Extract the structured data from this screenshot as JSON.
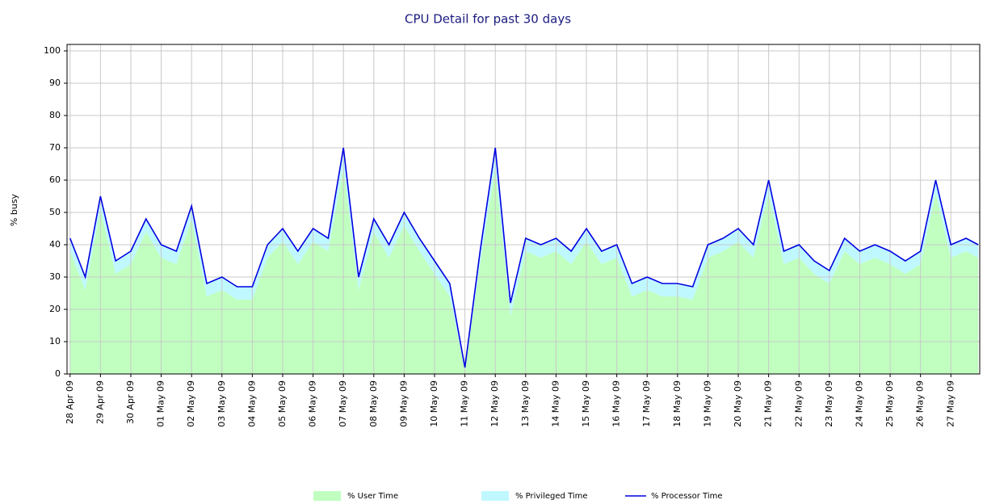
{
  "chart_data": {
    "type": "area",
    "title": "CPU Detail for past 30 days",
    "y_label": "% busy",
    "x": [
      0,
      0.5,
      1,
      1.5,
      2,
      2.5,
      3,
      3.5,
      4,
      4.5,
      5,
      5.5,
      6,
      6.5,
      7,
      7.5,
      8,
      8.5,
      9,
      9.5,
      10,
      10.5,
      11,
      11.5,
      12,
      12.5,
      13,
      13.5,
      14,
      14.5,
      15,
      15.5,
      16,
      16.5,
      17,
      17.5,
      18,
      18.5,
      19,
      19.5,
      20,
      20.5,
      21,
      21.5,
      22,
      22.5,
      23,
      23.5,
      24,
      24.5,
      25,
      25.5,
      26,
      26.5,
      27,
      27.5,
      28,
      28.5,
      29,
      29.5,
      29.9
    ],
    "series": [
      {
        "name": "% User Time",
        "color": "#c0ffc0",
        "stacked": true,
        "values": [
          38,
          26,
          51,
          31,
          34,
          44,
          36,
          34,
          48,
          24,
          26,
          23,
          23,
          36,
          41,
          34,
          41,
          38,
          64,
          26,
          44,
          36,
          46,
          38,
          31,
          24,
          1,
          34,
          64,
          18,
          38,
          36,
          38,
          34,
          41,
          34,
          36,
          24,
          26,
          24,
          24,
          23,
          36,
          38,
          41,
          36,
          56,
          34,
          36,
          31,
          28,
          38,
          34,
          36,
          34,
          31,
          34,
          56,
          36,
          38,
          36
        ]
      },
      {
        "name": "% Privileged Time",
        "color": "#c0f8ff",
        "stacked": true,
        "values": [
          4,
          4,
          4,
          4,
          4,
          4,
          4,
          4,
          4,
          4,
          4,
          4,
          4,
          4,
          4,
          4,
          4,
          4,
          6,
          4,
          4,
          4,
          4,
          4,
          4,
          4,
          1,
          4,
          6,
          4,
          4,
          4,
          4,
          4,
          4,
          4,
          4,
          4,
          4,
          4,
          4,
          4,
          4,
          4,
          4,
          4,
          4,
          4,
          4,
          4,
          4,
          4,
          4,
          4,
          4,
          4,
          4,
          4,
          4,
          4,
          4
        ]
      },
      {
        "name": "% Processor Time",
        "color": "#0000e0",
        "line": true,
        "values": [
          42,
          30,
          55,
          35,
          38,
          48,
          40,
          38,
          52,
          28,
          30,
          27,
          27,
          40,
          45,
          38,
          45,
          42,
          70,
          30,
          48,
          40,
          50,
          42,
          35,
          28,
          2,
          38,
          70,
          22,
          42,
          40,
          42,
          38,
          45,
          38,
          40,
          28,
          30,
          28,
          28,
          27,
          40,
          42,
          45,
          40,
          60,
          38,
          40,
          35,
          32,
          42,
          38,
          40,
          38,
          35,
          38,
          60,
          40,
          42,
          40
        ]
      }
    ],
    "xlim": [
      -0.1,
      29.95
    ],
    "xticks": [
      {
        "value": 0,
        "label": "28 Apr 09"
      },
      {
        "value": 1,
        "label": "29 Apr 09"
      },
      {
        "value": 2,
        "label": "30 Apr 09"
      },
      {
        "value": 3,
        "label": "01 May 09"
      },
      {
        "value": 4,
        "label": "02 May 09"
      },
      {
        "value": 5,
        "label": "03 May 09"
      },
      {
        "value": 6,
        "label": "04 May 09"
      },
      {
        "value": 7,
        "label": "05 May 09"
      },
      {
        "value": 8,
        "label": "06 May 09"
      },
      {
        "value": 9,
        "label": "07 May 09"
      },
      {
        "value": 10,
        "label": "08 May 09"
      },
      {
        "value": 11,
        "label": "09 May 09"
      },
      {
        "value": 12,
        "label": "10 May 09"
      },
      {
        "value": 13,
        "label": "11 May 09"
      },
      {
        "value": 14,
        "label": "12 May 09"
      },
      {
        "value": 15,
        "label": "13 May 09"
      },
      {
        "value": 16,
        "label": "14 May 09"
      },
      {
        "value": 17,
        "label": "15 May 09"
      },
      {
        "value": 18,
        "label": "16 May 09"
      },
      {
        "value": 19,
        "label": "17 May 09"
      },
      {
        "value": 20,
        "label": "18 May 09"
      },
      {
        "value": 21,
        "label": "19 May 09"
      },
      {
        "value": 22,
        "label": "20 May 09"
      },
      {
        "value": 23,
        "label": "21 May 09"
      },
      {
        "value": 24,
        "label": "22 May 09"
      },
      {
        "value": 25,
        "label": "23 May 09"
      },
      {
        "value": 26,
        "label": "24 May 09"
      },
      {
        "value": 27,
        "label": "25 May 09"
      },
      {
        "value": 28,
        "label": "26 May 09"
      },
      {
        "value": 29,
        "label": "27 May 09"
      }
    ],
    "ylim": [
      0,
      102
    ],
    "yticks": [
      0,
      10,
      20,
      30,
      40,
      50,
      60,
      70,
      80,
      90,
      100
    ],
    "grid": true
  }
}
